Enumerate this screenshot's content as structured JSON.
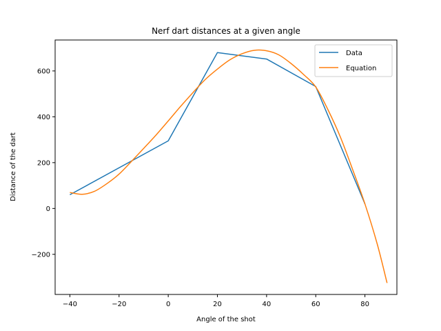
{
  "chart_data": {
    "type": "line",
    "title": "Nerf dart distances at a given angle",
    "xlabel": "Angle of the shot",
    "ylabel": "Distance of the dart",
    "xlim": [
      -46,
      93
    ],
    "ylim": [
      -375,
      735
    ],
    "xticks": [
      -40,
      -20,
      0,
      20,
      40,
      60,
      80
    ],
    "yticks": [
      -200,
      0,
      200,
      400,
      600
    ],
    "xtick_labels": [
      "−40",
      "−20",
      "0",
      "20",
      "40",
      "60",
      "80"
    ],
    "ytick_labels": [
      "−200",
      "0",
      "200",
      "400",
      "600"
    ],
    "grid": false,
    "legend_position": "top-right",
    "series": [
      {
        "name": "Data",
        "color": "#1f77b4",
        "x": [
          -40,
          0,
          20,
          40,
          60,
          80
        ],
        "y": [
          60,
          295,
          680,
          652,
          532,
          20
        ]
      },
      {
        "name": "Equation",
        "color": "#ff7f0e",
        "x": [
          -40,
          -35,
          -30,
          -25,
          -20,
          -15,
          -10,
          -5,
          0,
          5,
          10,
          15,
          20,
          25,
          30,
          35,
          40,
          45,
          50,
          55,
          60,
          65,
          70,
          75,
          80,
          85,
          89
        ],
        "y": [
          70,
          62,
          75,
          108,
          150,
          205,
          262,
          320,
          382,
          445,
          505,
          562,
          608,
          648,
          675,
          690,
          688,
          670,
          632,
          585,
          530,
          430,
          312,
          170,
          20,
          -155,
          -325
        ]
      }
    ]
  }
}
